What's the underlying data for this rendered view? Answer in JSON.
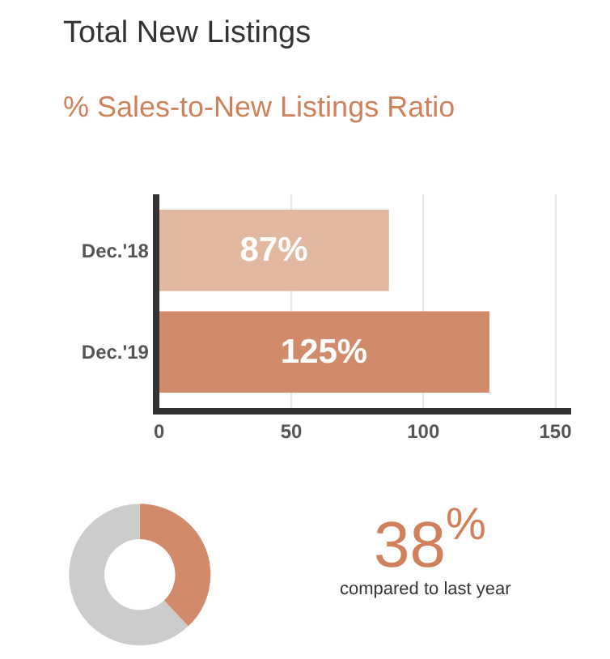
{
  "chart_data": [
    {
      "type": "bar",
      "title": "Total New Listings",
      "subtitle": "% Sales-to-New Listings Ratio",
      "orientation": "horizontal",
      "categories": [
        "Dec.'18",
        "Dec.'19"
      ],
      "values": [
        87,
        125
      ],
      "colors": [
        "#e2b8a0",
        "#d18b6b"
      ],
      "value_labels": [
        "87%",
        "125%"
      ],
      "xlim": [
        0,
        156
      ],
      "xticks": [
        0,
        50,
        100,
        150
      ],
      "grid": "x",
      "legend": false
    },
    {
      "type": "donut",
      "categories": [
        null,
        null
      ],
      "values": [
        38,
        62
      ],
      "colors": [
        "#d18b6b",
        "#cccccc"
      ],
      "annotations": [
        "38$^{%}$",
        "compared to last year"
      ],
      "legend": false
    }
  ]
}
